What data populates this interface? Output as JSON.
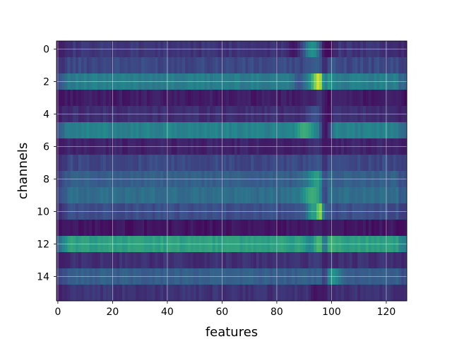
{
  "chart_data": {
    "type": "heatmap",
    "title": "",
    "xlabel": "features",
    "ylabel": "channels",
    "x_ticks": [
      0,
      20,
      40,
      60,
      80,
      100,
      120
    ],
    "y_ticks": [
      0,
      2,
      4,
      6,
      8,
      10,
      12,
      14
    ],
    "xlim": [
      -0.5,
      127.5
    ],
    "ylim": [
      15.5,
      -0.5
    ],
    "n_features": 128,
    "n_channels": 16,
    "grid": true,
    "colormap": "viridis",
    "value_range": [
      0,
      1
    ],
    "rows": [
      {
        "channel": 0,
        "base": 0.16,
        "peaks": [
          [
            86,
            0.06,
            2
          ],
          [
            93,
            0.5,
            3
          ],
          [
            99,
            0.03,
            2
          ]
        ]
      },
      {
        "channel": 1,
        "base": 0.22,
        "peaks": [
          [
            95,
            0.3,
            3
          ],
          [
            100,
            0.28,
            2
          ]
        ]
      },
      {
        "channel": 2,
        "base": 0.42,
        "peaks": [
          [
            96,
            1.0,
            3
          ],
          [
            88,
            0.25,
            2
          ]
        ]
      },
      {
        "channel": 3,
        "base": 0.08,
        "peaks": [
          [
            97,
            0.2,
            3
          ],
          [
            99,
            0.02,
            1
          ]
        ]
      },
      {
        "channel": 4,
        "base": 0.14,
        "peaks": [
          [
            94,
            0.25,
            3
          ],
          [
            99,
            0.05,
            1
          ]
        ]
      },
      {
        "channel": 5,
        "base": 0.44,
        "peaks": [
          [
            90,
            0.62,
            3
          ],
          [
            98,
            0.12,
            2
          ]
        ]
      },
      {
        "channel": 6,
        "base": 0.1,
        "peaks": [
          [
            95,
            0.16,
            3
          ]
        ]
      },
      {
        "channel": 7,
        "base": 0.22,
        "peaks": [
          [
            97,
            0.3,
            3
          ]
        ]
      },
      {
        "channel": 8,
        "base": 0.3,
        "peaks": [
          [
            95,
            0.56,
            4
          ]
        ]
      },
      {
        "channel": 9,
        "base": 0.36,
        "peaks": [
          [
            93,
            0.62,
            4
          ]
        ]
      },
      {
        "channel": 10,
        "base": 0.24,
        "peaks": [
          [
            96,
            1.0,
            2
          ],
          [
            93,
            0.55,
            2
          ]
        ]
      },
      {
        "channel": 11,
        "base": 0.06,
        "peaks": [
          [
            97,
            0.12,
            3
          ]
        ]
      },
      {
        "channel": 12,
        "base": 0.56,
        "peaks": [
          [
            97,
            0.78,
            3
          ],
          [
            92,
            0.45,
            2
          ]
        ]
      },
      {
        "channel": 13,
        "base": 0.14,
        "peaks": [
          [
            96,
            0.2,
            3
          ]
        ]
      },
      {
        "channel": 14,
        "base": 0.3,
        "peaks": [
          [
            100,
            0.52,
            3
          ]
        ]
      },
      {
        "channel": 15,
        "base": 0.15,
        "peaks": [
          [
            94,
            0.05,
            2
          ]
        ]
      }
    ]
  }
}
